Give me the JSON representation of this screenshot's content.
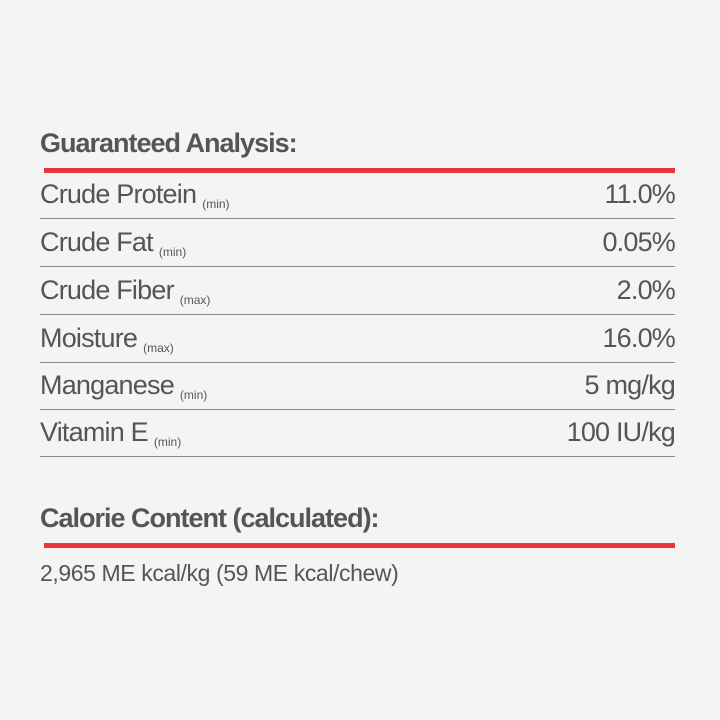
{
  "guaranteed_analysis": {
    "title": "Guaranteed Analysis:",
    "rows": [
      {
        "label": "Crude Protein",
        "qualifier": "(min)",
        "value": "11.0%"
      },
      {
        "label": "Crude Fat",
        "qualifier": "(min)",
        "value": "0.05%"
      },
      {
        "label": "Crude Fiber",
        "qualifier": "(max)",
        "value": "2.0%"
      },
      {
        "label": "Moisture",
        "qualifier": "(max)",
        "value": "16.0%"
      },
      {
        "label": "Manganese",
        "qualifier": "(min)",
        "value": "5 mg/kg"
      },
      {
        "label": "Vitamin E",
        "qualifier": "(min)",
        "value": "100 IU/kg"
      }
    ]
  },
  "calorie_content": {
    "title": "Calorie Content (calculated):",
    "value": "2,965 ME kcal/kg (59 ME kcal/chew)"
  },
  "colors": {
    "accent": "#e8363d",
    "text": "#555555",
    "background": "#f4f4f4"
  }
}
